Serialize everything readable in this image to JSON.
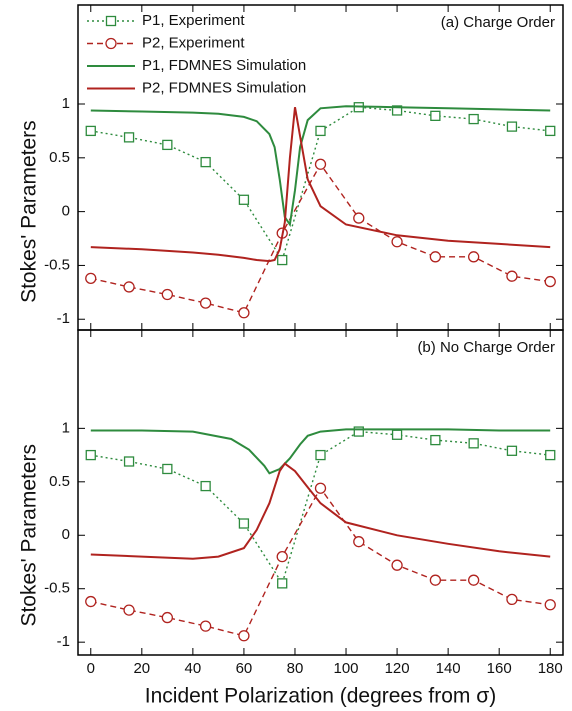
{
  "chart_data": [
    {
      "type": "line",
      "annotation": "(a) Charge Order",
      "ylabel": "Stokes' Parameters",
      "xlim": [
        -5,
        185
      ],
      "ylim": [
        -1.1,
        1.92
      ],
      "xticks": [
        0,
        20,
        40,
        60,
        80,
        100,
        120,
        140,
        160,
        180
      ],
      "yticks": [
        -1,
        -0.5,
        0,
        0.5,
        1
      ],
      "series": [
        {
          "name": "P1, Experiment",
          "color": "#2e8b3e",
          "dash": "dotted",
          "marker": "square",
          "x": [
            0,
            15,
            30,
            45,
            60,
            75,
            90,
            105,
            120,
            135,
            150,
            165,
            180
          ],
          "values": [
            0.75,
            0.69,
            0.62,
            0.46,
            0.11,
            -0.45,
            0.75,
            0.97,
            0.94,
            0.89,
            0.86,
            0.79,
            0.75
          ]
        },
        {
          "name": "P2, Experiment",
          "color": "#b0231f",
          "dash": "dashed",
          "marker": "circle",
          "x": [
            0,
            15,
            30,
            45,
            60,
            75,
            90,
            105,
            120,
            135,
            150,
            165,
            180
          ],
          "values": [
            -0.62,
            -0.7,
            -0.77,
            -0.85,
            -0.94,
            -0.2,
            0.44,
            -0.06,
            -0.28,
            -0.42,
            -0.42,
            -0.6,
            -0.65
          ]
        },
        {
          "name": "P1, FDMNES Simulation",
          "color": "#2e8b3e",
          "dash": "solid",
          "x": [
            0,
            20,
            40,
            50,
            60,
            65,
            70,
            72,
            74,
            76,
            78,
            80,
            82,
            85,
            90,
            100,
            120,
            140,
            160,
            180
          ],
          "values": [
            0.94,
            0.93,
            0.92,
            0.91,
            0.88,
            0.84,
            0.72,
            0.6,
            0.3,
            -0.05,
            -0.12,
            0.2,
            0.6,
            0.85,
            0.96,
            0.98,
            0.97,
            0.96,
            0.95,
            0.94
          ]
        },
        {
          "name": "P2, FDMNES Simulation",
          "color": "#b0231f",
          "dash": "solid",
          "x": [
            0,
            20,
            40,
            50,
            60,
            65,
            70,
            72,
            74,
            76,
            78,
            80,
            82,
            85,
            90,
            100,
            120,
            140,
            160,
            180
          ],
          "values": [
            -0.33,
            -0.35,
            -0.38,
            -0.4,
            -0.43,
            -0.45,
            -0.46,
            -0.45,
            -0.35,
            -0.1,
            0.5,
            0.97,
            0.7,
            0.3,
            0.05,
            -0.12,
            -0.22,
            -0.27,
            -0.3,
            -0.33
          ]
        }
      ]
    },
    {
      "type": "line",
      "annotation": "(b) No Charge Order",
      "ylabel": "Stokes' Parameters",
      "xlabel": "Incident Polarization (degrees from σ)",
      "xlim": [
        -5,
        185
      ],
      "ylim": [
        -1.12,
        1.92
      ],
      "xticks": [
        0,
        20,
        40,
        60,
        80,
        100,
        120,
        140,
        160,
        180
      ],
      "yticks": [
        -1,
        -0.5,
        0,
        0.5,
        1
      ],
      "series": [
        {
          "color": "#2e8b3e",
          "dash": "dotted",
          "marker": "square",
          "x": [
            0,
            15,
            30,
            45,
            60,
            75,
            90,
            105,
            120,
            135,
            150,
            165,
            180
          ],
          "values": [
            0.75,
            0.69,
            0.62,
            0.46,
            0.11,
            -0.45,
            0.75,
            0.97,
            0.94,
            0.89,
            0.86,
            0.79,
            0.75
          ]
        },
        {
          "color": "#b0231f",
          "dash": "dashed",
          "marker": "circle",
          "x": [
            0,
            15,
            30,
            45,
            60,
            75,
            90,
            105,
            120,
            135,
            150,
            165,
            180
          ],
          "values": [
            -0.62,
            -0.7,
            -0.77,
            -0.85,
            -0.94,
            -0.2,
            0.44,
            -0.06,
            -0.28,
            -0.42,
            -0.42,
            -0.6,
            -0.65
          ]
        },
        {
          "color": "#2e8b3e",
          "dash": "solid",
          "x": [
            0,
            20,
            40,
            55,
            62,
            68,
            70,
            74,
            78,
            82,
            85,
            90,
            100,
            120,
            140,
            160,
            180
          ],
          "values": [
            0.98,
            0.98,
            0.97,
            0.9,
            0.8,
            0.65,
            0.58,
            0.62,
            0.72,
            0.85,
            0.93,
            0.97,
            0.99,
            0.99,
            0.99,
            0.98,
            0.98
          ]
        },
        {
          "color": "#b0231f",
          "dash": "solid",
          "x": [
            0,
            20,
            40,
            50,
            60,
            65,
            70,
            74,
            76,
            80,
            85,
            90,
            100,
            120,
            140,
            160,
            180
          ],
          "values": [
            -0.18,
            -0.2,
            -0.22,
            -0.2,
            -0.12,
            0.05,
            0.3,
            0.6,
            0.67,
            0.6,
            0.45,
            0.3,
            0.12,
            0.0,
            -0.08,
            -0.15,
            -0.2
          ]
        }
      ]
    }
  ]
}
